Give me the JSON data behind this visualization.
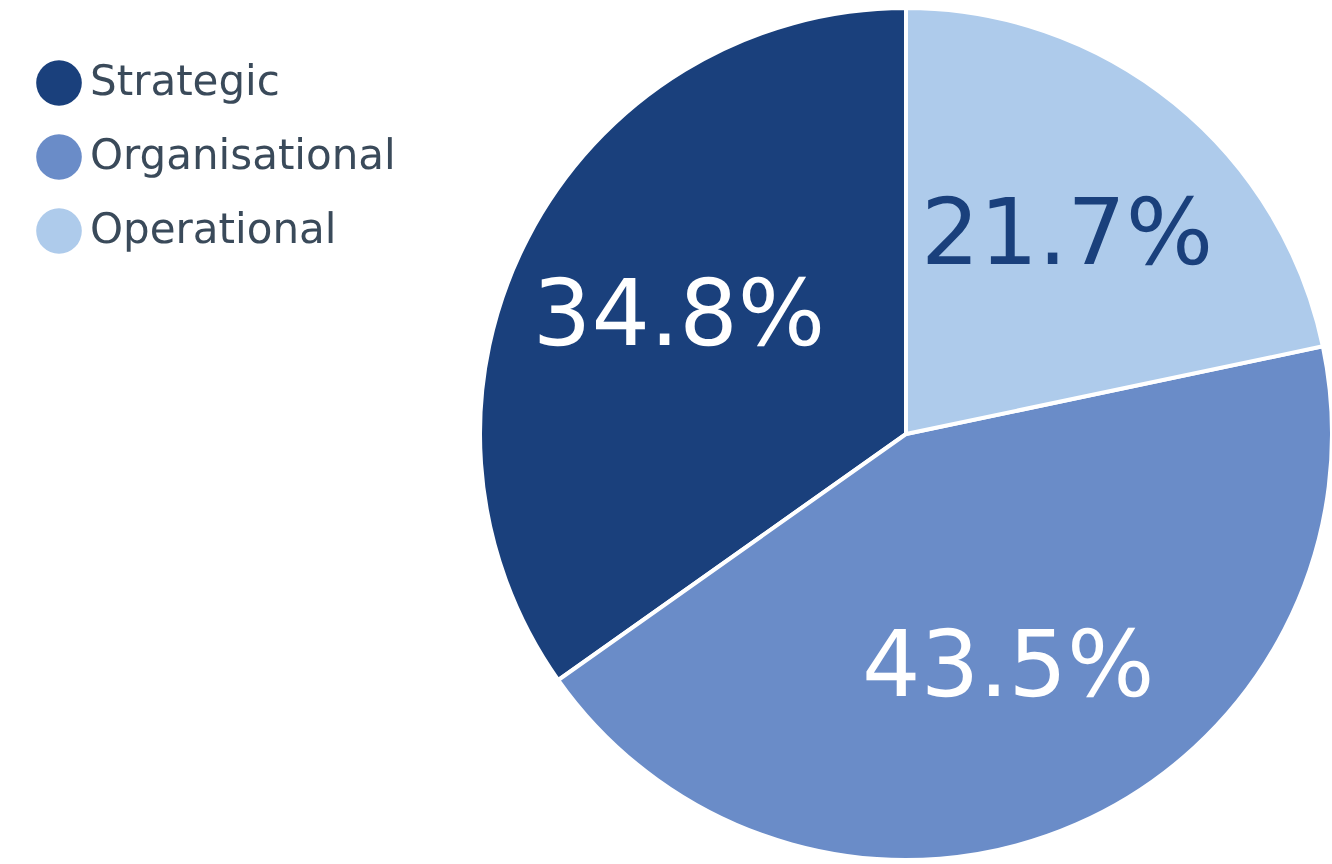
{
  "chart_data": {
    "type": "pie",
    "categories": [
      "Strategic",
      "Organisational",
      "Operational"
    ],
    "values": [
      34.8,
      43.5,
      21.7
    ],
    "colors": [
      "#1a407c",
      "#6a8cc8",
      "#aecbeb"
    ],
    "value_labels": [
      "34.8%",
      "43.5%",
      "21.7%"
    ],
    "legend": "top left"
  }
}
